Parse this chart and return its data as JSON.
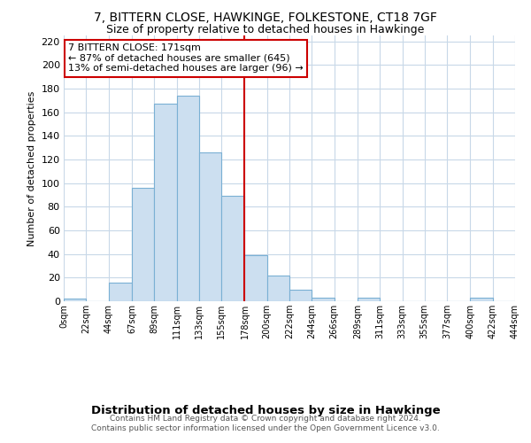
{
  "title": "7, BITTERN CLOSE, HAWKINGE, FOLKESTONE, CT18 7GF",
  "subtitle": "Size of property relative to detached houses in Hawkinge",
  "xlabel": "Distribution of detached houses by size in Hawkinge",
  "ylabel": "Number of detached properties",
  "bar_color": "#ccdff0",
  "bar_edge_color": "#7ab0d4",
  "bin_edges": [
    0,
    22,
    44,
    67,
    89,
    111,
    133,
    155,
    178,
    200,
    222,
    244,
    266,
    289,
    311,
    333,
    355,
    377,
    400,
    422,
    444
  ],
  "bin_labels": [
    "0sqm",
    "22sqm",
    "44sqm",
    "67sqm",
    "89sqm",
    "111sqm",
    "133sqm",
    "155sqm",
    "178sqm",
    "200sqm",
    "222sqm",
    "244sqm",
    "266sqm",
    "289sqm",
    "311sqm",
    "333sqm",
    "355sqm",
    "377sqm",
    "400sqm",
    "422sqm",
    "444sqm"
  ],
  "bar_heights": [
    2,
    0,
    16,
    96,
    167,
    174,
    126,
    89,
    39,
    22,
    10,
    3,
    0,
    3,
    0,
    0,
    0,
    0,
    3,
    0
  ],
  "vline_x": 178,
  "vline_color": "#cc0000",
  "ylim": [
    0,
    225
  ],
  "yticks": [
    0,
    20,
    40,
    60,
    80,
    100,
    120,
    140,
    160,
    180,
    200,
    220
  ],
  "annotation_title": "7 BITTERN CLOSE: 171sqm",
  "annotation_line1": "← 87% of detached houses are smaller (645)",
  "annotation_line2": "13% of semi-detached houses are larger (96) →",
  "footer_line1": "Contains HM Land Registry data © Crown copyright and database right 2024.",
  "footer_line2": "Contains public sector information licensed under the Open Government Licence v3.0.",
  "grid_color": "#c8d8e8",
  "background_color": "#ffffff"
}
